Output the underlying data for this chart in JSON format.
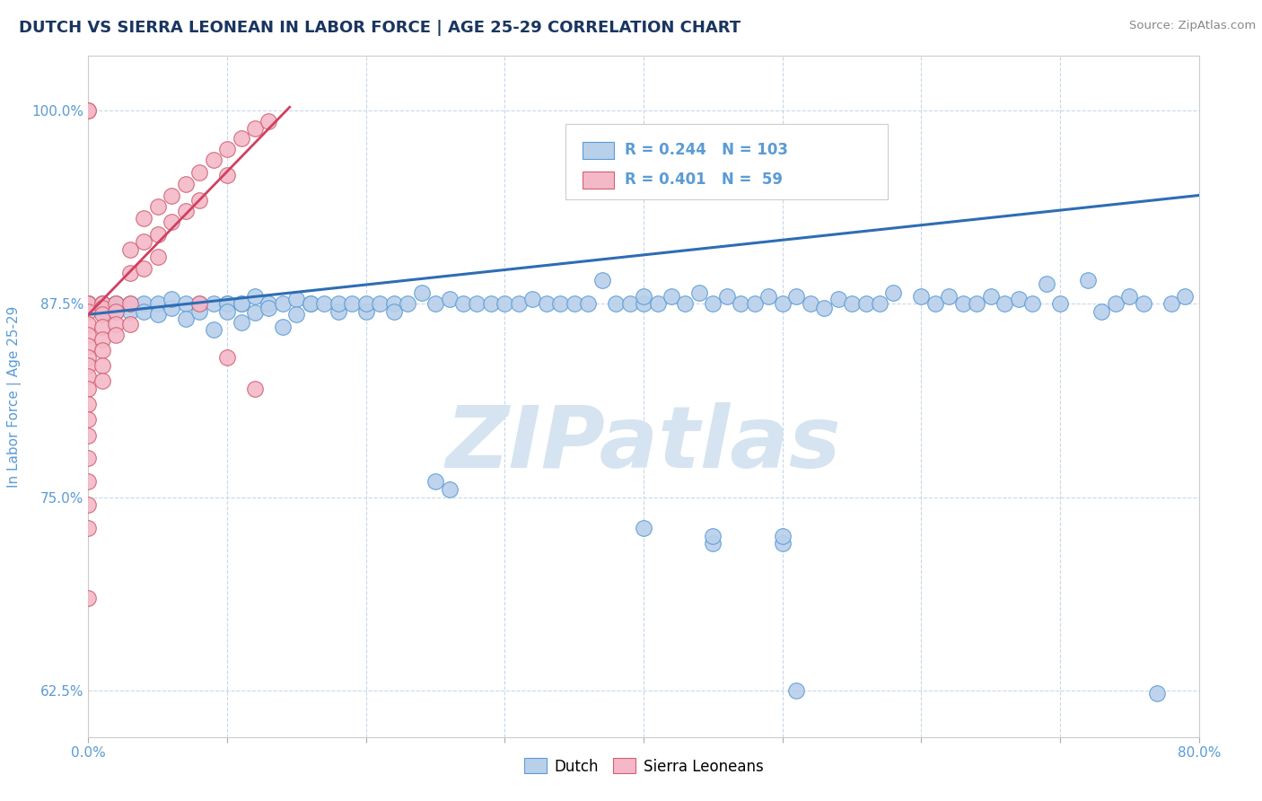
{
  "title": "DUTCH VS SIERRA LEONEAN IN LABOR FORCE | AGE 25-29 CORRELATION CHART",
  "source_text": "Source: ZipAtlas.com",
  "ylabel": "In Labor Force | Age 25-29",
  "xlim": [
    0.0,
    0.8
  ],
  "ylim": [
    0.595,
    1.035
  ],
  "xticks": [
    0.0,
    0.1,
    0.2,
    0.3,
    0.4,
    0.5,
    0.6,
    0.7,
    0.8
  ],
  "xticklabels": [
    "0.0%",
    "",
    "",
    "",
    "",
    "",
    "",
    "",
    "80.0%"
  ],
  "yticks": [
    0.625,
    0.75,
    0.875,
    1.0
  ],
  "yticklabels": [
    "62.5%",
    "75.0%",
    "87.5%",
    "100.0%"
  ],
  "dutch_color": "#b8d0ea",
  "dutch_edge_color": "#5b9bd5",
  "sierra_color": "#f4b8c8",
  "sierra_edge_color": "#d06070",
  "trend_dutch_color": "#2e6db4",
  "trend_sierra_color": "#d04060",
  "R_dutch": 0.244,
  "N_dutch": 103,
  "R_sierra": 0.401,
  "N_sierra": 59,
  "watermark": "ZIPatlas",
  "watermark_color": "#d5e4f0",
  "title_color": "#1a3560",
  "axis_color": "#5b9bd5",
  "grid_color": "#c8d8e8",
  "legend_dutch_label": "Dutch",
  "legend_sierra_label": "Sierra Leoneans",
  "dutch_trend_x": [
    0.0,
    0.8
  ],
  "dutch_trend_y": [
    0.868,
    0.945
  ],
  "sierra_trend_x": [
    0.0,
    0.145
  ],
  "sierra_trend_y": [
    0.868,
    1.002
  ],
  "dutch_points": [
    [
      0.0,
      0.875
    ],
    [
      0.0,
      0.875
    ],
    [
      0.0,
      0.875
    ],
    [
      0.01,
      0.875
    ],
    [
      0.01,
      0.87
    ],
    [
      0.01,
      0.875
    ],
    [
      0.02,
      0.875
    ],
    [
      0.02,
      0.87
    ],
    [
      0.02,
      0.875
    ],
    [
      0.03,
      0.87
    ],
    [
      0.03,
      0.875
    ],
    [
      0.04,
      0.875
    ],
    [
      0.04,
      0.87
    ],
    [
      0.05,
      0.875
    ],
    [
      0.05,
      0.868
    ],
    [
      0.06,
      0.872
    ],
    [
      0.06,
      0.878
    ],
    [
      0.07,
      0.875
    ],
    [
      0.07,
      0.865
    ],
    [
      0.08,
      0.875
    ],
    [
      0.08,
      0.87
    ],
    [
      0.09,
      0.875
    ],
    [
      0.09,
      0.858
    ],
    [
      0.1,
      0.875
    ],
    [
      0.1,
      0.875
    ],
    [
      0.1,
      0.87
    ],
    [
      0.11,
      0.875
    ],
    [
      0.11,
      0.863
    ],
    [
      0.11,
      0.875
    ],
    [
      0.12,
      0.88
    ],
    [
      0.12,
      0.869
    ],
    [
      0.13,
      0.875
    ],
    [
      0.13,
      0.872
    ],
    [
      0.14,
      0.875
    ],
    [
      0.14,
      0.86
    ],
    [
      0.15,
      0.878
    ],
    [
      0.15,
      0.868
    ],
    [
      0.16,
      0.875
    ],
    [
      0.16,
      0.875
    ],
    [
      0.17,
      0.875
    ],
    [
      0.18,
      0.87
    ],
    [
      0.18,
      0.875
    ],
    [
      0.19,
      0.875
    ],
    [
      0.2,
      0.87
    ],
    [
      0.2,
      0.875
    ],
    [
      0.21,
      0.875
    ],
    [
      0.22,
      0.875
    ],
    [
      0.22,
      0.87
    ],
    [
      0.23,
      0.875
    ],
    [
      0.24,
      0.882
    ],
    [
      0.25,
      0.875
    ],
    [
      0.26,
      0.878
    ],
    [
      0.27,
      0.875
    ],
    [
      0.28,
      0.875
    ],
    [
      0.29,
      0.875
    ],
    [
      0.3,
      0.875
    ],
    [
      0.31,
      0.875
    ],
    [
      0.32,
      0.878
    ],
    [
      0.33,
      0.875
    ],
    [
      0.34,
      0.875
    ],
    [
      0.35,
      0.875
    ],
    [
      0.36,
      0.875
    ],
    [
      0.37,
      0.89
    ],
    [
      0.38,
      0.875
    ],
    [
      0.39,
      0.875
    ],
    [
      0.4,
      0.875
    ],
    [
      0.4,
      0.88
    ],
    [
      0.41,
      0.875
    ],
    [
      0.42,
      0.88
    ],
    [
      0.43,
      0.875
    ],
    [
      0.44,
      0.882
    ],
    [
      0.45,
      0.875
    ],
    [
      0.46,
      0.88
    ],
    [
      0.47,
      0.875
    ],
    [
      0.48,
      0.875
    ],
    [
      0.49,
      0.88
    ],
    [
      0.5,
      0.875
    ],
    [
      0.51,
      0.88
    ],
    [
      0.52,
      0.875
    ],
    [
      0.53,
      0.872
    ],
    [
      0.54,
      0.878
    ],
    [
      0.55,
      0.875
    ],
    [
      0.56,
      0.875
    ],
    [
      0.57,
      0.875
    ],
    [
      0.58,
      0.882
    ],
    [
      0.6,
      0.88
    ],
    [
      0.61,
      0.875
    ],
    [
      0.62,
      0.88
    ],
    [
      0.63,
      0.875
    ],
    [
      0.64,
      0.875
    ],
    [
      0.65,
      0.88
    ],
    [
      0.66,
      0.875
    ],
    [
      0.67,
      0.878
    ],
    [
      0.68,
      0.875
    ],
    [
      0.69,
      0.888
    ],
    [
      0.7,
      0.875
    ],
    [
      0.72,
      0.89
    ],
    [
      0.73,
      0.87
    ],
    [
      0.74,
      0.875
    ],
    [
      0.75,
      0.88
    ],
    [
      0.76,
      0.875
    ],
    [
      0.77,
      0.623
    ],
    [
      0.78,
      0.875
    ],
    [
      0.79,
      0.88
    ],
    [
      0.4,
      0.73
    ],
    [
      0.45,
      0.72
    ],
    [
      0.45,
      0.725
    ],
    [
      0.5,
      0.72
    ],
    [
      0.5,
      0.725
    ],
    [
      0.51,
      0.625
    ],
    [
      0.25,
      0.76
    ],
    [
      0.26,
      0.755
    ]
  ],
  "sierra_points": [
    [
      0.0,
      1.0
    ],
    [
      0.0,
      1.0
    ],
    [
      0.0,
      0.875
    ],
    [
      0.0,
      0.875
    ],
    [
      0.0,
      0.875
    ],
    [
      0.0,
      0.87
    ],
    [
      0.0,
      0.862
    ],
    [
      0.0,
      0.855
    ],
    [
      0.0,
      0.848
    ],
    [
      0.0,
      0.84
    ],
    [
      0.0,
      0.835
    ],
    [
      0.0,
      0.828
    ],
    [
      0.0,
      0.82
    ],
    [
      0.0,
      0.81
    ],
    [
      0.0,
      0.8
    ],
    [
      0.0,
      0.79
    ],
    [
      0.0,
      0.775
    ],
    [
      0.0,
      0.76
    ],
    [
      0.0,
      0.745
    ],
    [
      0.0,
      0.73
    ],
    [
      0.0,
      0.685
    ],
    [
      0.01,
      0.875
    ],
    [
      0.01,
      0.875
    ],
    [
      0.01,
      0.872
    ],
    [
      0.01,
      0.868
    ],
    [
      0.01,
      0.86
    ],
    [
      0.01,
      0.852
    ],
    [
      0.01,
      0.845
    ],
    [
      0.01,
      0.835
    ],
    [
      0.01,
      0.825
    ],
    [
      0.02,
      0.875
    ],
    [
      0.02,
      0.87
    ],
    [
      0.02,
      0.862
    ],
    [
      0.02,
      0.855
    ],
    [
      0.03,
      0.91
    ],
    [
      0.03,
      0.895
    ],
    [
      0.03,
      0.875
    ],
    [
      0.03,
      0.862
    ],
    [
      0.04,
      0.93
    ],
    [
      0.04,
      0.915
    ],
    [
      0.04,
      0.898
    ],
    [
      0.05,
      0.938
    ],
    [
      0.05,
      0.92
    ],
    [
      0.05,
      0.905
    ],
    [
      0.06,
      0.945
    ],
    [
      0.06,
      0.928
    ],
    [
      0.07,
      0.952
    ],
    [
      0.07,
      0.935
    ],
    [
      0.08,
      0.96
    ],
    [
      0.08,
      0.942
    ],
    [
      0.09,
      0.968
    ],
    [
      0.1,
      0.975
    ],
    [
      0.1,
      0.958
    ],
    [
      0.11,
      0.982
    ],
    [
      0.12,
      0.988
    ],
    [
      0.13,
      0.993
    ],
    [
      0.08,
      0.875
    ],
    [
      0.1,
      0.84
    ],
    [
      0.12,
      0.82
    ]
  ]
}
